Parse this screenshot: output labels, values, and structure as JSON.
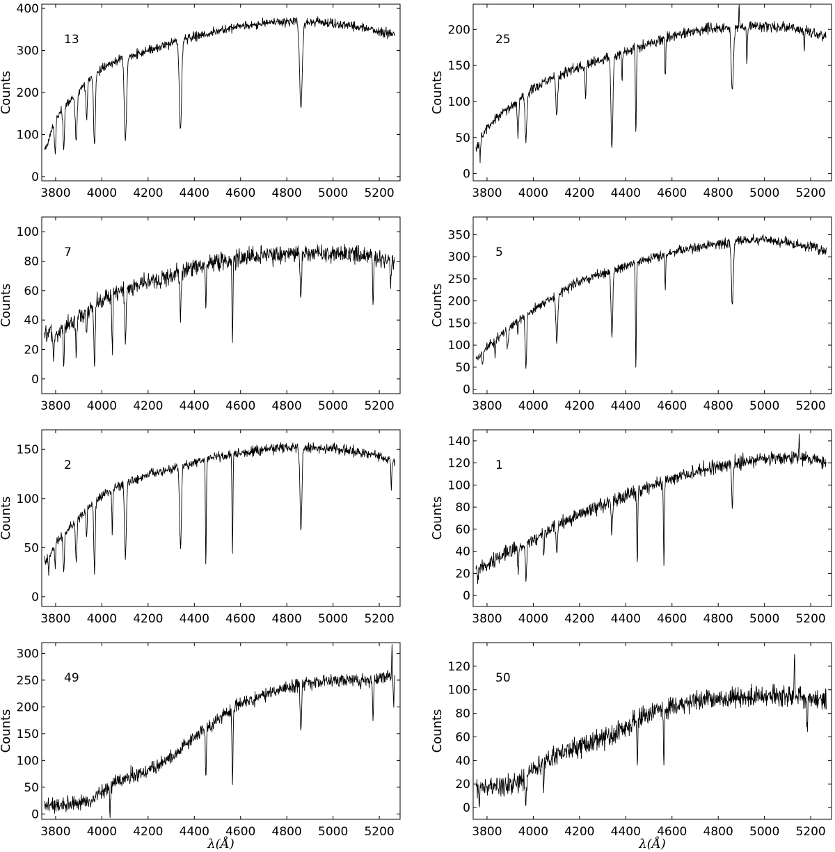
{
  "chart_data": [
    {
      "type": "line",
      "panel_label": "13",
      "ylabel": "Counts",
      "xlabel": "",
      "xlim": [
        3740,
        5290
      ],
      "ylim": [
        -10,
        410
      ],
      "xticks": [
        3800,
        4000,
        4200,
        4400,
        4600,
        4800,
        5000,
        5200
      ],
      "yticks": [
        0,
        100,
        200,
        300,
        400
      ],
      "continuum": [
        [
          3760,
          70
        ],
        [
          3800,
          140
        ],
        [
          3850,
          175
        ],
        [
          3900,
          200
        ],
        [
          3950,
          232
        ],
        [
          4000,
          255
        ],
        [
          4050,
          272
        ],
        [
          4100,
          283
        ],
        [
          4150,
          292
        ],
        [
          4200,
          300
        ],
        [
          4300,
          318
        ],
        [
          4400,
          333
        ],
        [
          4500,
          345
        ],
        [
          4600,
          356
        ],
        [
          4700,
          365
        ],
        [
          4800,
          368
        ],
        [
          4900,
          368
        ],
        [
          5000,
          366
        ],
        [
          5100,
          357
        ],
        [
          5200,
          344
        ],
        [
          5265,
          338
        ]
      ],
      "absorption": [
        [
          3798,
          55,
          3
        ],
        [
          3835,
          65,
          3
        ],
        [
          3889,
          85,
          4
        ],
        [
          3934,
          140,
          3
        ],
        [
          3968,
          75,
          4
        ],
        [
          4102,
          90,
          5
        ],
        [
          4340,
          108,
          5
        ],
        [
          4861,
          170,
          6
        ]
      ],
      "noise": 9
    },
    {
      "type": "line",
      "panel_label": "25",
      "ylabel": "Counts",
      "xlabel": "",
      "xlim": [
        3740,
        5290
      ],
      "ylim": [
        -10,
        235
      ],
      "xticks": [
        3800,
        4000,
        4200,
        4400,
        4600,
        4800,
        5000,
        5200
      ],
      "yticks": [
        0,
        50,
        100,
        150,
        200
      ],
      "continuum": [
        [
          3760,
          40
        ],
        [
          3800,
          65
        ],
        [
          3850,
          80
        ],
        [
          3900,
          92
        ],
        [
          3950,
          105
        ],
        [
          4000,
          118
        ],
        [
          4050,
          128
        ],
        [
          4100,
          135
        ],
        [
          4200,
          148
        ],
        [
          4300,
          158
        ],
        [
          4400,
          170
        ],
        [
          4500,
          180
        ],
        [
          4600,
          190
        ],
        [
          4700,
          198
        ],
        [
          4800,
          202
        ],
        [
          4900,
          204
        ],
        [
          5000,
          204
        ],
        [
          5100,
          203
        ],
        [
          5200,
          196
        ],
        [
          5265,
          190
        ]
      ],
      "absorption": [
        [
          3770,
          20,
          2
        ],
        [
          3934,
          55,
          3
        ],
        [
          3968,
          45,
          4
        ],
        [
          4102,
          80,
          4
        ],
        [
          4226,
          105,
          2
        ],
        [
          4340,
          32,
          4
        ],
        [
          4384,
          128,
          2
        ],
        [
          4444,
          52,
          2
        ],
        [
          4571,
          135,
          2
        ],
        [
          4861,
          118,
          5
        ],
        [
          4924,
          150,
          2
        ],
        [
          5172,
          175,
          2
        ]
      ],
      "spikes": [
        [
          4890,
          232
        ]
      ],
      "noise": 6
    },
    {
      "type": "line",
      "panel_label": "7",
      "ylabel": "Counts",
      "xlabel": "",
      "xlim": [
        3740,
        5290
      ],
      "ylim": [
        -10,
        110
      ],
      "xticks": [
        3800,
        4000,
        4200,
        4400,
        4600,
        4800,
        5000,
        5200
      ],
      "yticks": [
        0,
        20,
        40,
        60,
        80,
        100
      ],
      "continuum": [
        [
          3760,
          30
        ],
        [
          3800,
          30
        ],
        [
          3850,
          36
        ],
        [
          3900,
          42
        ],
        [
          3950,
          48
        ],
        [
          4000,
          53
        ],
        [
          4050,
          58
        ],
        [
          4100,
          61
        ],
        [
          4150,
          64
        ],
        [
          4200,
          66
        ],
        [
          4300,
          70
        ],
        [
          4400,
          75
        ],
        [
          4500,
          80
        ],
        [
          4600,
          82
        ],
        [
          4700,
          84
        ],
        [
          4800,
          85
        ],
        [
          4900,
          86
        ],
        [
          5000,
          86
        ],
        [
          5100,
          85
        ],
        [
          5200,
          82
        ],
        [
          5265,
          80
        ]
      ],
      "absorption": [
        [
          3791,
          13,
          2
        ],
        [
          3835,
          8,
          2
        ],
        [
          3889,
          20,
          3
        ],
        [
          3934,
          25,
          2
        ],
        [
          3968,
          12,
          3
        ],
        [
          4045,
          18,
          2
        ],
        [
          4102,
          27,
          3
        ],
        [
          4340,
          43,
          3
        ],
        [
          4450,
          48,
          2
        ],
        [
          4565,
          26,
          2
        ],
        [
          4861,
          55,
          3
        ],
        [
          5173,
          47,
          2
        ],
        [
          5250,
          63,
          2
        ]
      ],
      "noise": 5
    },
    {
      "type": "line",
      "panel_label": "5",
      "ylabel": "Counts",
      "xlabel": "",
      "xlim": [
        3740,
        5290
      ],
      "ylim": [
        -10,
        390
      ],
      "xticks": [
        3800,
        4000,
        4200,
        4400,
        4600,
        4800,
        5000,
        5200
      ],
      "yticks": [
        0,
        50,
        100,
        150,
        200,
        250,
        300,
        350
      ],
      "continuum": [
        [
          3760,
          70
        ],
        [
          3800,
          95
        ],
        [
          3850,
          118
        ],
        [
          3900,
          140
        ],
        [
          3950,
          160
        ],
        [
          4000,
          180
        ],
        [
          4050,
          198
        ],
        [
          4100,
          212
        ],
        [
          4150,
          230
        ],
        [
          4200,
          245
        ],
        [
          4300,
          262
        ],
        [
          4400,
          280
        ],
        [
          4500,
          295
        ],
        [
          4600,
          308
        ],
        [
          4700,
          320
        ],
        [
          4800,
          328
        ],
        [
          4900,
          335
        ],
        [
          5000,
          338
        ],
        [
          5100,
          332
        ],
        [
          5200,
          322
        ],
        [
          5265,
          312
        ]
      ],
      "absorption": [
        [
          3780,
          55,
          2
        ],
        [
          3835,
          75,
          2
        ],
        [
          3889,
          95,
          3
        ],
        [
          3934,
          130,
          2
        ],
        [
          3968,
          45,
          3
        ],
        [
          4102,
          110,
          4
        ],
        [
          4340,
          120,
          4
        ],
        [
          4444,
          48,
          2
        ],
        [
          4571,
          225,
          2
        ],
        [
          4861,
          188,
          4
        ]
      ],
      "noise": 9
    },
    {
      "type": "line",
      "panel_label": "2",
      "ylabel": "Counts",
      "xlabel": "",
      "xlim": [
        3740,
        5290
      ],
      "ylim": [
        -10,
        170
      ],
      "xticks": [
        3800,
        4000,
        4200,
        4400,
        4600,
        4800,
        5000,
        5200
      ],
      "yticks": [
        0,
        50,
        100,
        150
      ],
      "continuum": [
        [
          3760,
          35
        ],
        [
          3800,
          55
        ],
        [
          3850,
          68
        ],
        [
          3900,
          80
        ],
        [
          3950,
          92
        ],
        [
          4000,
          102
        ],
        [
          4050,
          110
        ],
        [
          4100,
          116
        ],
        [
          4150,
          120
        ],
        [
          4200,
          124
        ],
        [
          4300,
          130
        ],
        [
          4400,
          137
        ],
        [
          4500,
          142
        ],
        [
          4600,
          146
        ],
        [
          4700,
          150
        ],
        [
          4800,
          152
        ],
        [
          4900,
          152
        ],
        [
          5000,
          151
        ],
        [
          5100,
          148
        ],
        [
          5200,
          143
        ],
        [
          5265,
          138
        ]
      ],
      "absorption": [
        [
          3770,
          24,
          2
        ],
        [
          3798,
          28,
          2
        ],
        [
          3835,
          24,
          3
        ],
        [
          3889,
          35,
          3
        ],
        [
          3934,
          60,
          2
        ],
        [
          3968,
          24,
          3
        ],
        [
          4045,
          65,
          2
        ],
        [
          4102,
          43,
          4
        ],
        [
          4340,
          51,
          4
        ],
        [
          4450,
          32,
          2
        ],
        [
          4565,
          45,
          2
        ],
        [
          4861,
          65,
          4
        ],
        [
          5252,
          108,
          2
        ]
      ],
      "noise": 4
    },
    {
      "type": "line",
      "panel_label": "1",
      "ylabel": "Counts",
      "xlabel": "",
      "xlim": [
        3740,
        5290
      ],
      "ylim": [
        -10,
        150
      ],
      "xticks": [
        3800,
        4000,
        4200,
        4400,
        4600,
        4800,
        5000,
        5200
      ],
      "yticks": [
        0,
        20,
        40,
        60,
        80,
        100,
        120,
        140
      ],
      "continuum": [
        [
          3760,
          25
        ],
        [
          3800,
          28
        ],
        [
          3850,
          34
        ],
        [
          3900,
          40
        ],
        [
          3950,
          45
        ],
        [
          4000,
          50
        ],
        [
          4050,
          57
        ],
        [
          4100,
          63
        ],
        [
          4150,
          68
        ],
        [
          4200,
          73
        ],
        [
          4300,
          82
        ],
        [
          4400,
          90
        ],
        [
          4500,
          98
        ],
        [
          4600,
          106
        ],
        [
          4700,
          112
        ],
        [
          4800,
          117
        ],
        [
          4900,
          121
        ],
        [
          5000,
          124
        ],
        [
          5100,
          125
        ],
        [
          5200,
          124
        ],
        [
          5265,
          120
        ]
      ],
      "absorption": [
        [
          3760,
          16,
          2
        ],
        [
          3934,
          20,
          2
        ],
        [
          3968,
          17,
          3
        ],
        [
          4045,
          32,
          2
        ],
        [
          4102,
          38,
          3
        ],
        [
          4340,
          55,
          3
        ],
        [
          4450,
          25,
          2
        ],
        [
          4565,
          26,
          2
        ],
        [
          4861,
          80,
          3
        ]
      ],
      "spikes": [
        [
          5150,
          147
        ]
      ],
      "noise": 5
    },
    {
      "type": "line",
      "panel_label": "49",
      "ylabel": "Counts",
      "xlabel": "λ(Å)",
      "xlim": [
        3740,
        5290
      ],
      "ylim": [
        -10,
        320
      ],
      "xticks": [
        3800,
        4000,
        4200,
        4400,
        4600,
        4800,
        5000,
        5200
      ],
      "yticks": [
        0,
        50,
        100,
        150,
        200,
        250,
        300
      ],
      "continuum": [
        [
          3760,
          15
        ],
        [
          3800,
          17
        ],
        [
          3850,
          18
        ],
        [
          3900,
          20
        ],
        [
          3950,
          25
        ],
        [
          4000,
          40
        ],
        [
          4050,
          58
        ],
        [
          4100,
          68
        ],
        [
          4150,
          75
        ],
        [
          4200,
          82
        ],
        [
          4250,
          92
        ],
        [
          4300,
          105
        ],
        [
          4350,
          125
        ],
        [
          4400,
          145
        ],
        [
          4450,
          160
        ],
        [
          4500,
          177
        ],
        [
          4550,
          192
        ],
        [
          4600,
          205
        ],
        [
          4700,
          222
        ],
        [
          4800,
          235
        ],
        [
          4900,
          245
        ],
        [
          5000,
          250
        ],
        [
          5100,
          248
        ],
        [
          5200,
          250
        ],
        [
          5265,
          265
        ]
      ],
      "absorption": [
        [
          4035,
          5,
          2
        ],
        [
          4450,
          65,
          2
        ],
        [
          4565,
          53,
          2
        ],
        [
          4861,
          162,
          3
        ],
        [
          5173,
          170,
          2
        ],
        [
          5262,
          200,
          2
        ]
      ],
      "spikes": [
        [
          5255,
          310
        ]
      ],
      "noise": 11
    },
    {
      "type": "line",
      "panel_label": "50",
      "ylabel": "Counts",
      "xlabel": "λ(Å)",
      "xlim": [
        3740,
        5290
      ],
      "ylim": [
        -10,
        140
      ],
      "xticks": [
        3800,
        4000,
        4200,
        4400,
        4600,
        4800,
        5000,
        5200
      ],
      "yticks": [
        0,
        20,
        40,
        60,
        80,
        100,
        120
      ],
      "continuum": [
        [
          3760,
          18
        ],
        [
          3800,
          18
        ],
        [
          3850,
          19
        ],
        [
          3900,
          20
        ],
        [
          3950,
          22
        ],
        [
          4000,
          32
        ],
        [
          4050,
          40
        ],
        [
          4100,
          45
        ],
        [
          4150,
          48
        ],
        [
          4200,
          52
        ],
        [
          4250,
          55
        ],
        [
          4300,
          58
        ],
        [
          4350,
          62
        ],
        [
          4400,
          68
        ],
        [
          4450,
          75
        ],
        [
          4500,
          80
        ],
        [
          4550,
          84
        ],
        [
          4600,
          87
        ],
        [
          4700,
          91
        ],
        [
          4800,
          93
        ],
        [
          4900,
          94
        ],
        [
          5000,
          95
        ],
        [
          5100,
          94
        ],
        [
          5200,
          92
        ],
        [
          5265,
          91
        ]
      ],
      "absorption": [
        [
          3767,
          -3,
          2
        ],
        [
          3968,
          5,
          3
        ],
        [
          4045,
          20,
          2
        ],
        [
          4450,
          35,
          2
        ],
        [
          4565,
          37,
          2
        ],
        [
          5185,
          62,
          2
        ]
      ],
      "spikes": [
        [
          5130,
          128
        ]
      ],
      "noise": 7
    }
  ]
}
